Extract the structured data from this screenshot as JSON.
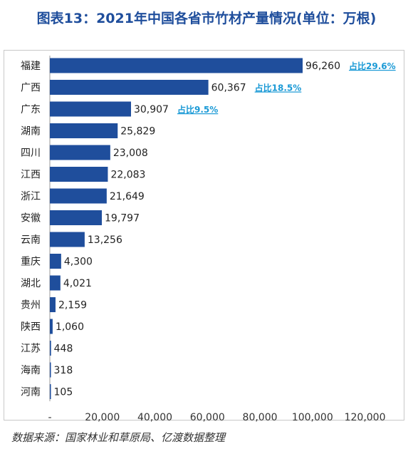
{
  "header": {
    "title": "图表13：2021年中国各省市竹材产量情况(单位：万根)"
  },
  "footer": {
    "source": "数据来源：国家林业和草原局、亿渡数据整理"
  },
  "chart_data": {
    "type": "bar",
    "orientation": "horizontal",
    "title": "图表13：2021年中国各省市竹材产量情况(单位：万根)",
    "xlabel": "",
    "ylabel": "",
    "xlim": [
      0,
      120000
    ],
    "x_ticks": [
      "-",
      "20,000",
      "40,000",
      "60,000",
      "80,000",
      "100,000",
      "120,000"
    ],
    "categories": [
      "福建",
      "广西",
      "广东",
      "湖南",
      "四川",
      "江西",
      "浙江",
      "安徽",
      "云南",
      "重庆",
      "湖北",
      "贵州",
      "陕西",
      "江苏",
      "海南",
      "河南"
    ],
    "values": [
      96260,
      60367,
      30907,
      25829,
      23008,
      22083,
      21649,
      19797,
      13256,
      4300,
      4021,
      2159,
      1060,
      448,
      318,
      105
    ],
    "value_labels": [
      "96,260",
      "60,367",
      "30,907",
      "25,829",
      "23,008",
      "22,083",
      "21,649",
      "19,797",
      "13,256",
      "4,300",
      "4,021",
      "2,159",
      "1,060",
      "448",
      "318",
      "105"
    ],
    "annotations": [
      {
        "category": "福建",
        "text": "占比29.6%"
      },
      {
        "category": "广西",
        "text": "占比18.5%"
      },
      {
        "category": "广东",
        "text": "占比9.5%"
      }
    ],
    "grid": false,
    "colors": {
      "bar": "#1f4e9c",
      "annotation": "#1b9ad6"
    }
  }
}
